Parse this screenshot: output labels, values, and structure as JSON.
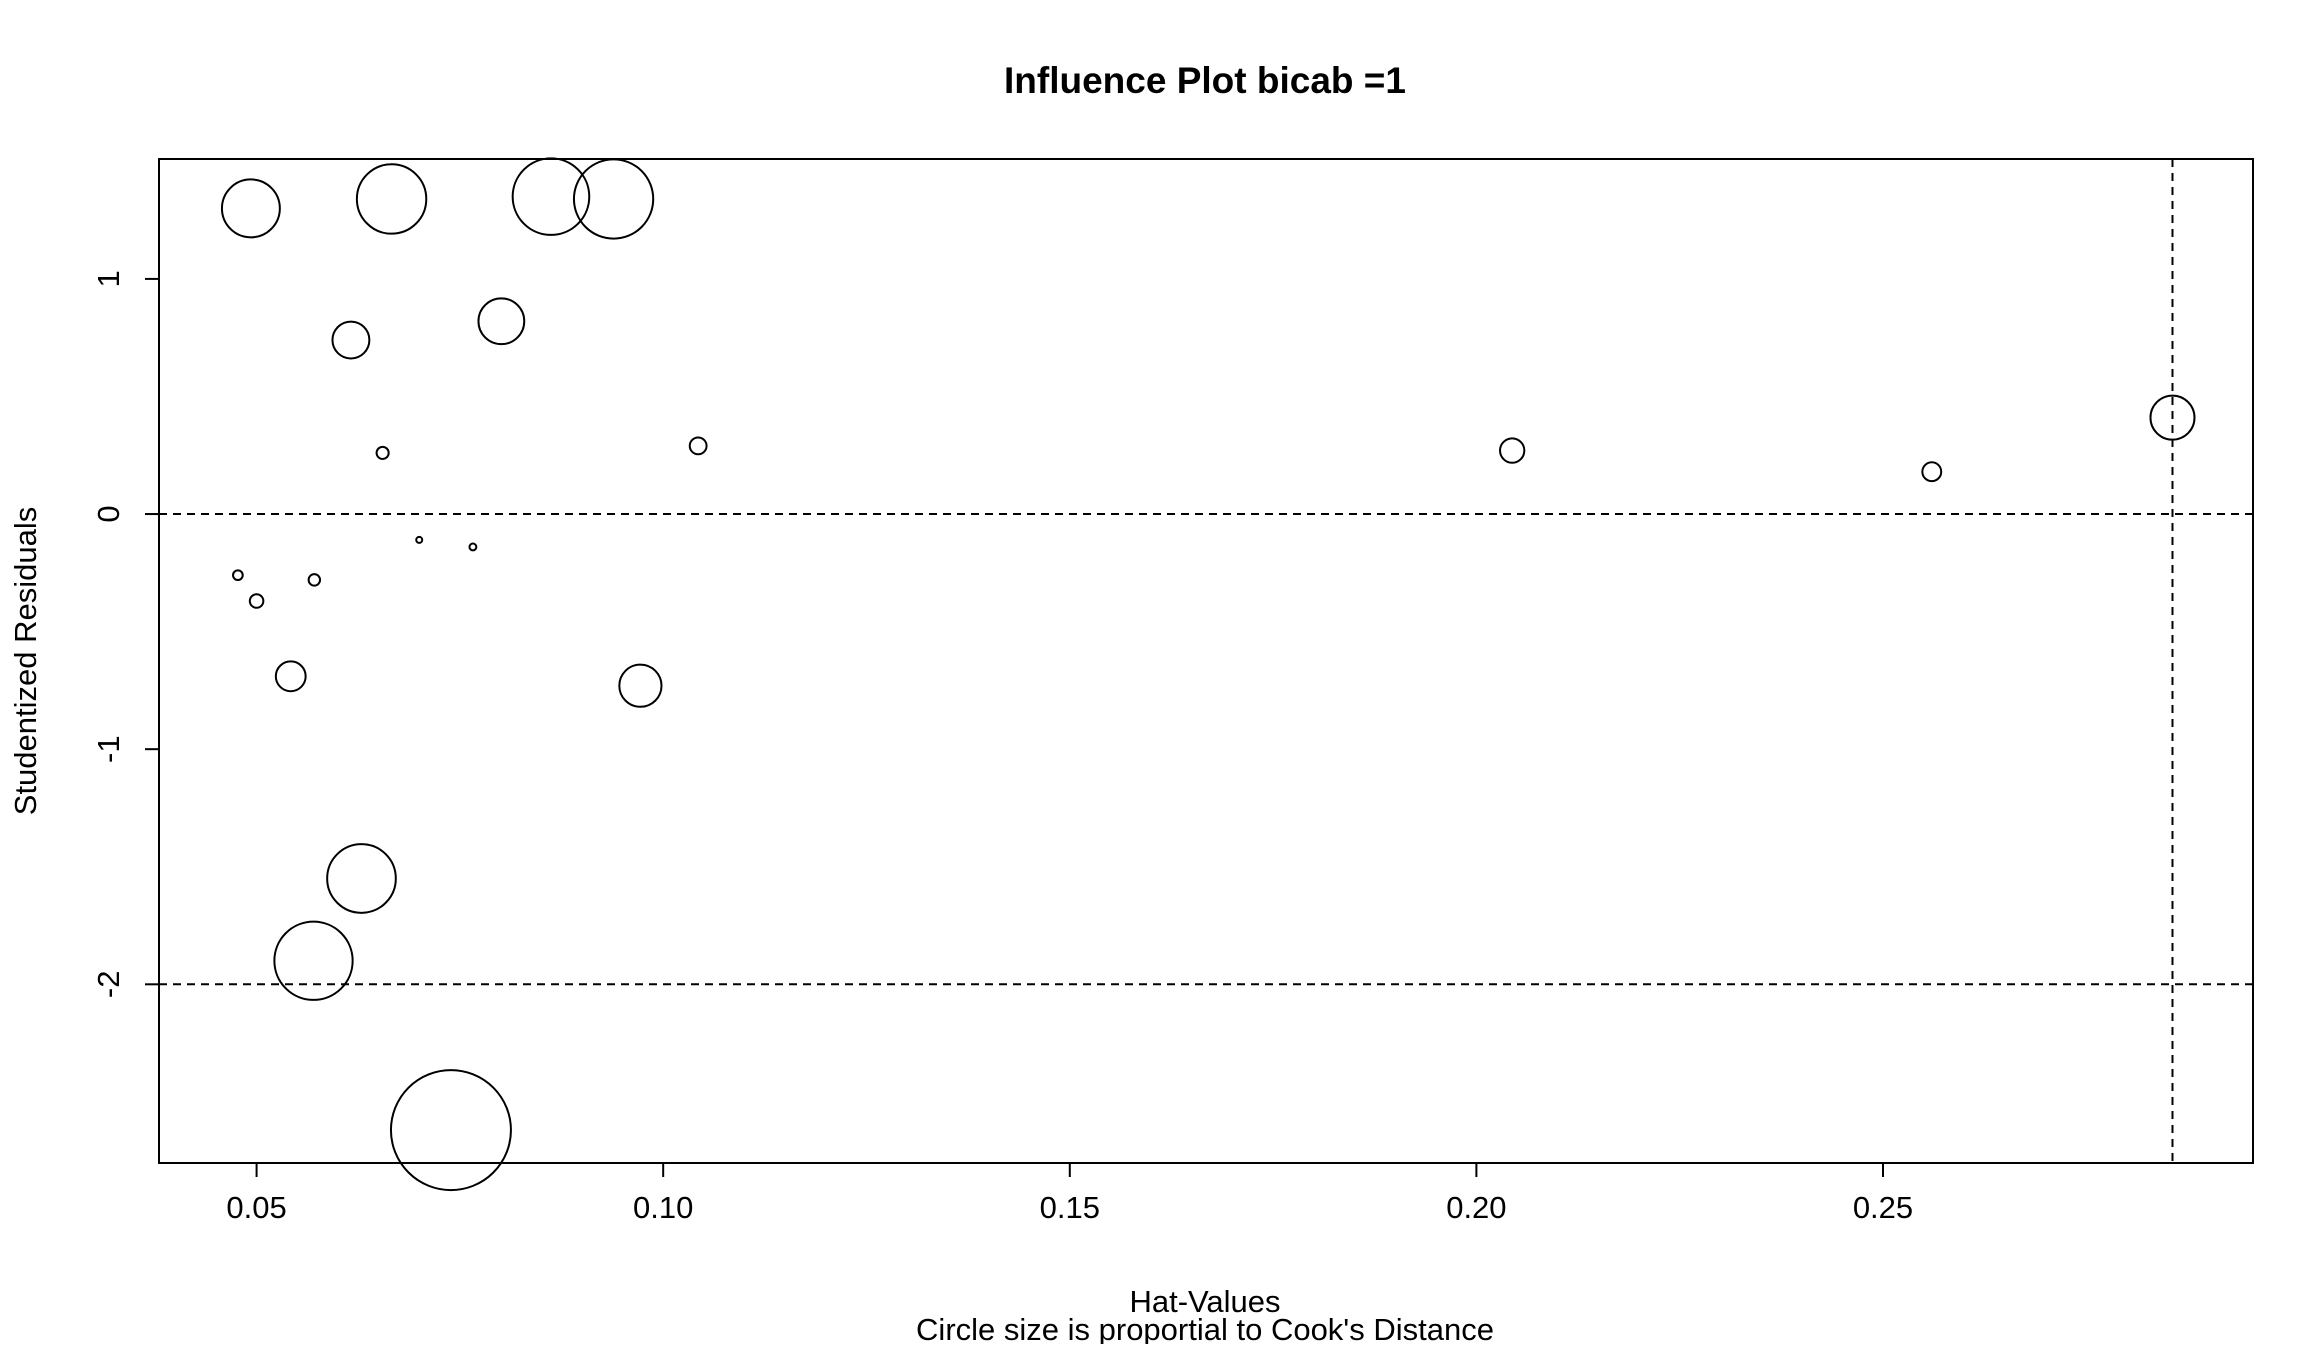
{
  "chart_data": {
    "type": "scatter",
    "title": "Influence Plot bicab =1",
    "xlabel": "Hat-Values",
    "xsublabel": "Circle size is proportial to Cook's Distance",
    "ylabel": "Studentized Residuals",
    "xlim": [
      0.038,
      0.2955
    ],
    "ylim": [
      -2.76,
      1.51
    ],
    "x_ticks": [
      0.05,
      0.1,
      0.15,
      0.2,
      0.25
    ],
    "x_tick_labels": [
      "0.05",
      "0.10",
      "0.15",
      "0.20",
      "0.25"
    ],
    "y_ticks": [
      -2,
      -1,
      0,
      1
    ],
    "y_tick_labels": [
      "-2",
      "-1",
      "0",
      "1"
    ],
    "reference_lines": {
      "horizontal": [
        -2,
        0
      ],
      "vertical": [
        0.2856
      ],
      "style": "dashed"
    },
    "grid": false,
    "colors": {
      "points": "#000000",
      "axes": "#000000",
      "background": "#ffffff"
    },
    "points": [
      {
        "x": 0.0493,
        "y": 1.3,
        "cooks_distance": 0.064
      },
      {
        "x": 0.0666,
        "y": 1.34,
        "cooks_distance": 0.092
      },
      {
        "x": 0.0862,
        "y": 1.35,
        "cooks_distance": 0.112
      },
      {
        "x": 0.0939,
        "y": 1.34,
        "cooks_distance": 0.12
      },
      {
        "x": 0.0616,
        "y": 0.74,
        "cooks_distance": 0.026
      },
      {
        "x": 0.0801,
        "y": 0.82,
        "cooks_distance": 0.04
      },
      {
        "x": 0.0655,
        "y": 0.26,
        "cooks_distance": 0.0028
      },
      {
        "x": 0.1043,
        "y": 0.29,
        "cooks_distance": 0.0054
      },
      {
        "x": 0.2044,
        "y": 0.27,
        "cooks_distance": 0.0113
      },
      {
        "x": 0.256,
        "y": 0.18,
        "cooks_distance": 0.0068
      },
      {
        "x": 0.2856,
        "y": 0.41,
        "cooks_distance": 0.037
      },
      {
        "x": 0.07,
        "y": -0.11,
        "cooks_distance": 0.0006
      },
      {
        "x": 0.0766,
        "y": -0.14,
        "cooks_distance": 0.0009
      },
      {
        "x": 0.0477,
        "y": -0.26,
        "cooks_distance": 0.0018
      },
      {
        "x": 0.05,
        "y": -0.37,
        "cooks_distance": 0.0035
      },
      {
        "x": 0.0571,
        "y": -0.28,
        "cooks_distance": 0.0025
      },
      {
        "x": 0.0542,
        "y": -0.69,
        "cooks_distance": 0.017
      },
      {
        "x": 0.0972,
        "y": -0.73,
        "cooks_distance": 0.034
      },
      {
        "x": 0.0629,
        "y": -1.55,
        "cooks_distance": 0.09
      },
      {
        "x": 0.057,
        "y": -1.9,
        "cooks_distance": 0.117
      },
      {
        "x": 0.0739,
        "y": -2.62,
        "cooks_distance": 0.275
      }
    ]
  }
}
